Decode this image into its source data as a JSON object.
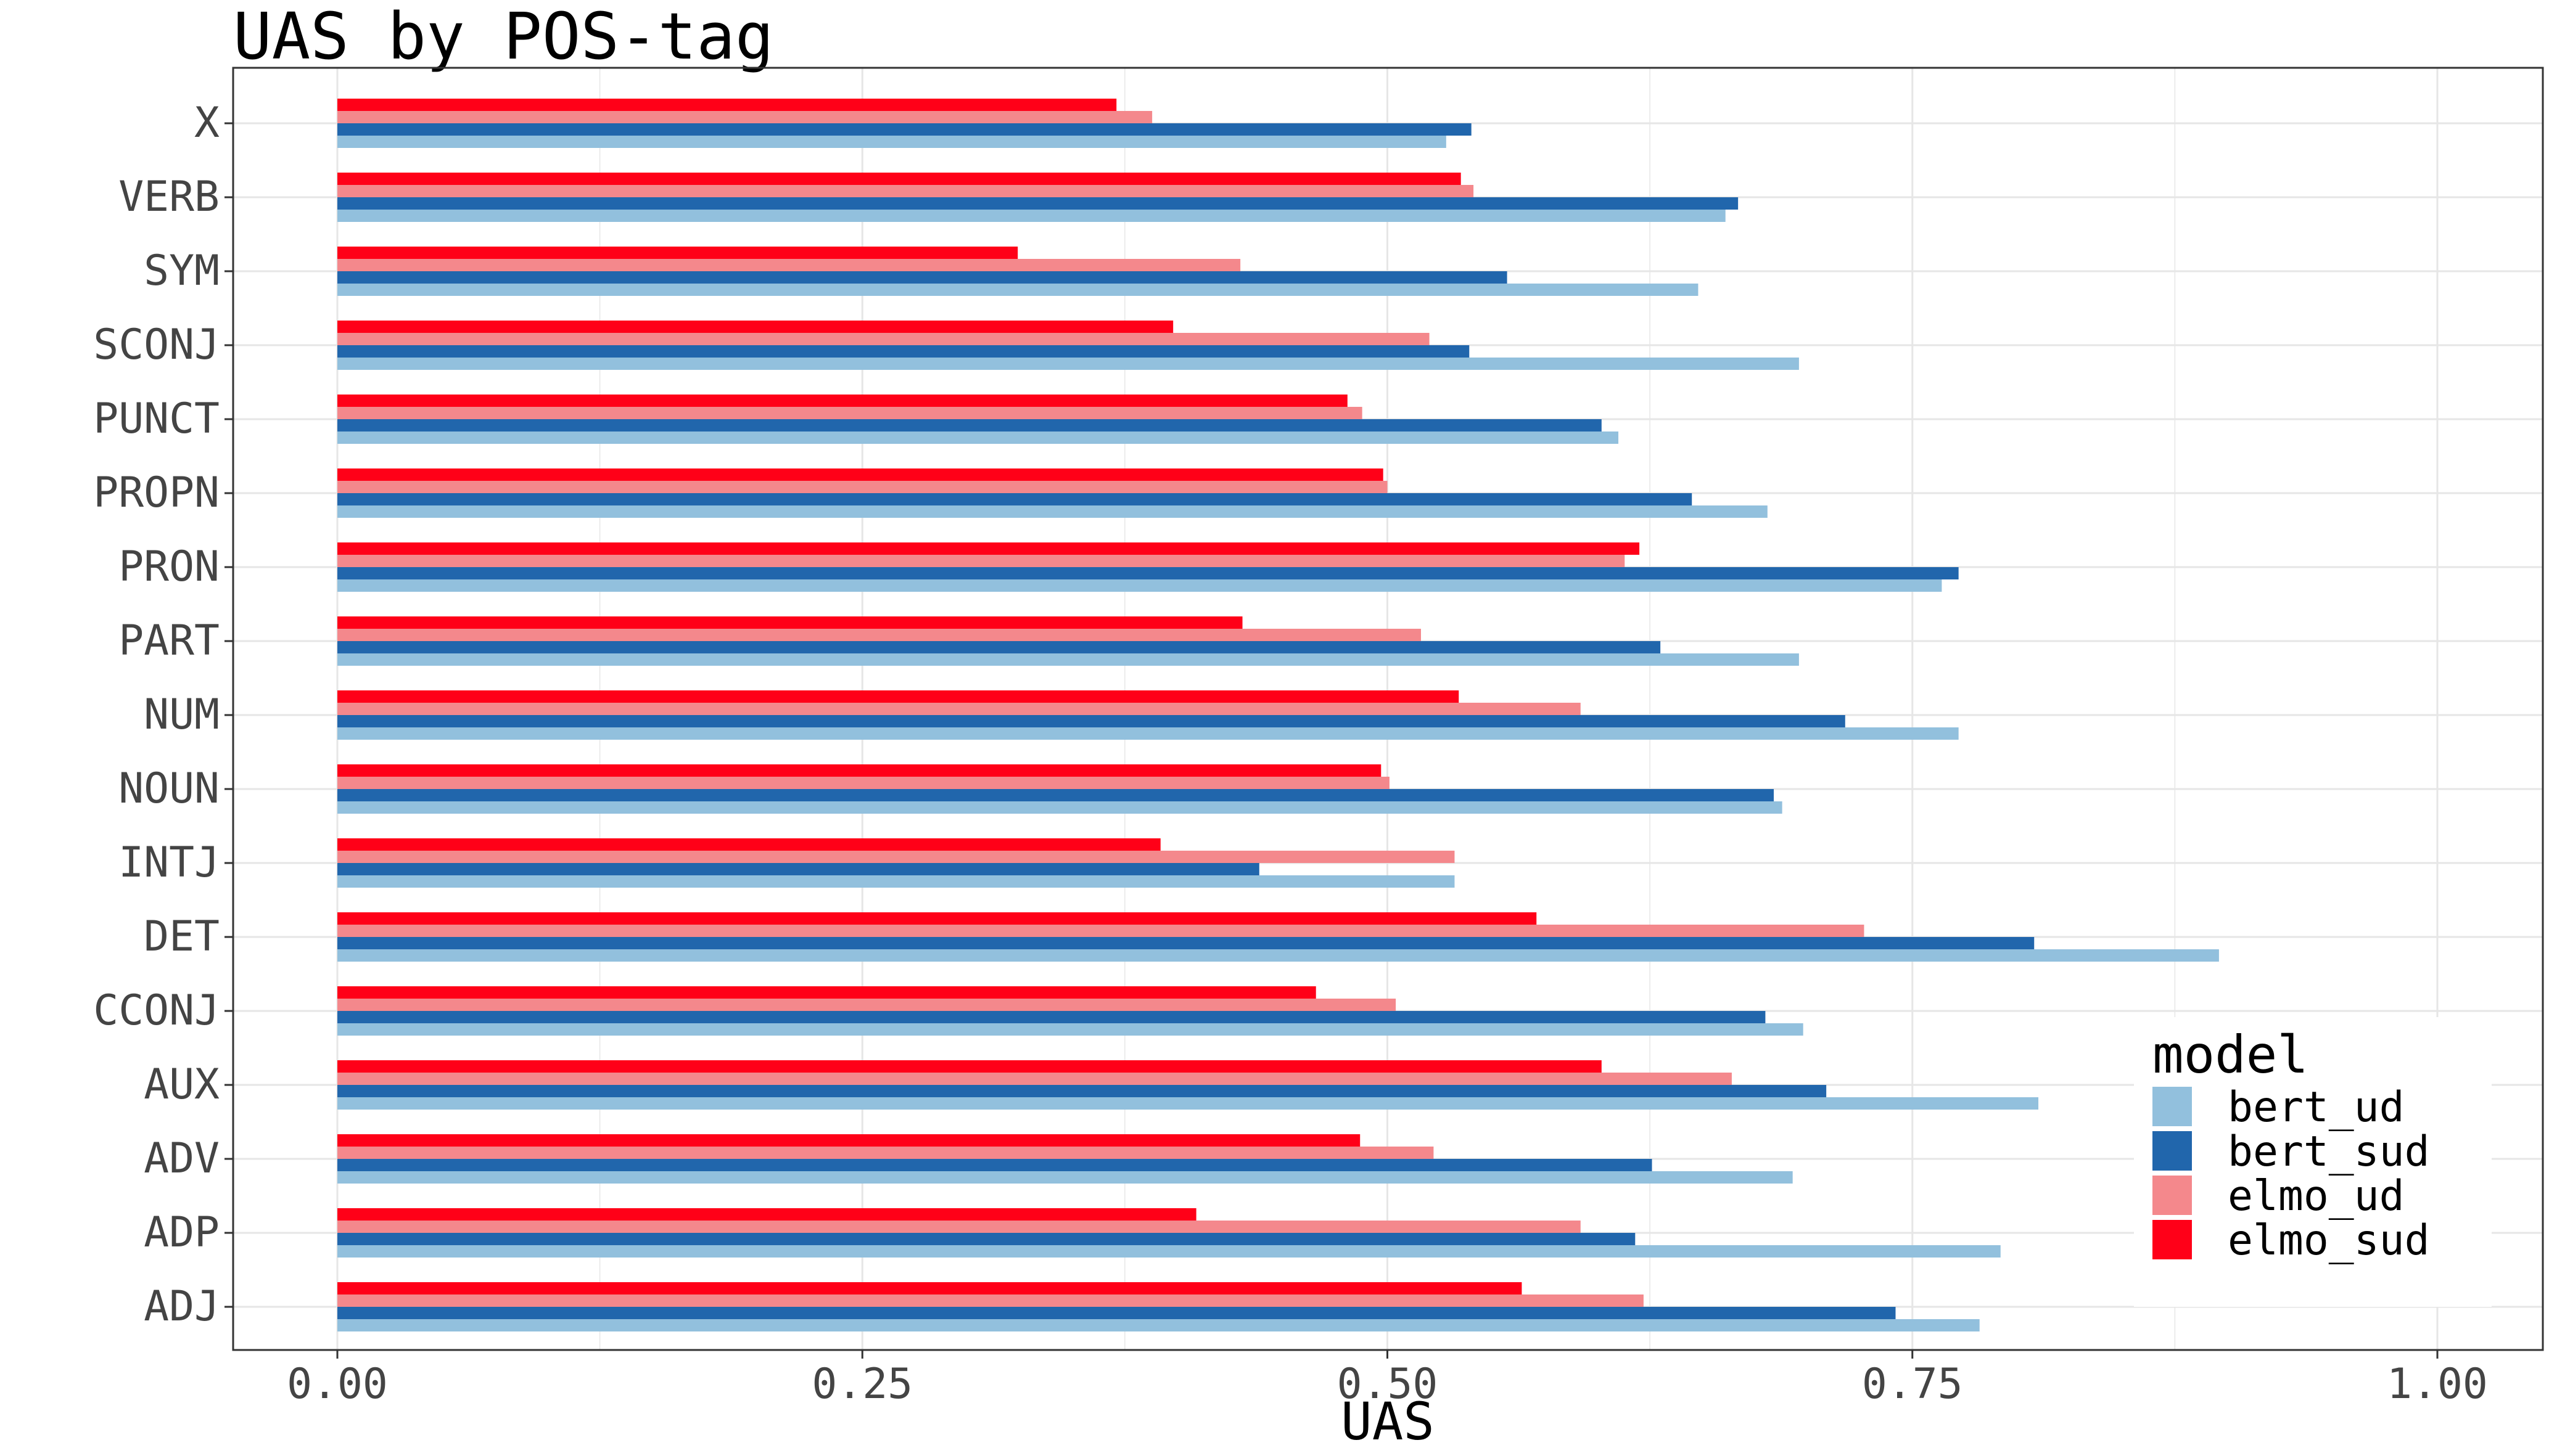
{
  "chart_data": {
    "type": "bar",
    "orientation": "horizontal",
    "title": "UAS by POS-tag",
    "xlabel": "UAS",
    "ylabel": "",
    "xlim": [
      0,
      1.0
    ],
    "xticks": [
      "0.00",
      "0.25",
      "0.50",
      "0.75",
      "1.00"
    ],
    "grid": true,
    "legend": {
      "title": "model",
      "position": "right"
    },
    "categories": [
      "X",
      "VERB",
      "SYM",
      "SCONJ",
      "PUNCT",
      "PROPN",
      "PRON",
      "PART",
      "NUM",
      "NOUN",
      "INTJ",
      "DET",
      "CCONJ",
      "AUX",
      "ADV",
      "ADP",
      "ADJ"
    ],
    "series": [
      {
        "name": "bert_ud",
        "color": "#92c0dd",
        "values": [
          0.528,
          0.661,
          0.648,
          0.696,
          0.61,
          0.681,
          0.764,
          0.696,
          0.772,
          0.688,
          0.532,
          0.896,
          0.698,
          0.81,
          0.693,
          0.792,
          0.782
        ]
      },
      {
        "name": "bert_sud",
        "color": "#2166ac",
        "values": [
          0.54,
          0.667,
          0.557,
          0.539,
          0.602,
          0.645,
          0.772,
          0.63,
          0.718,
          0.684,
          0.439,
          0.808,
          0.68,
          0.709,
          0.626,
          0.618,
          0.742
        ]
      },
      {
        "name": "elmo_ud",
        "color": "#f4888c",
        "values": [
          0.388,
          0.541,
          0.43,
          0.52,
          0.488,
          0.5,
          0.613,
          0.516,
          0.592,
          0.501,
          0.532,
          0.727,
          0.504,
          0.664,
          0.522,
          0.592,
          0.622
        ]
      },
      {
        "name": "elmo_sud",
        "color": "#ff0018",
        "values": [
          0.371,
          0.535,
          0.324,
          0.398,
          0.481,
          0.498,
          0.62,
          0.431,
          0.534,
          0.497,
          0.392,
          0.571,
          0.466,
          0.602,
          0.487,
          0.409,
          0.564
        ]
      }
    ]
  }
}
